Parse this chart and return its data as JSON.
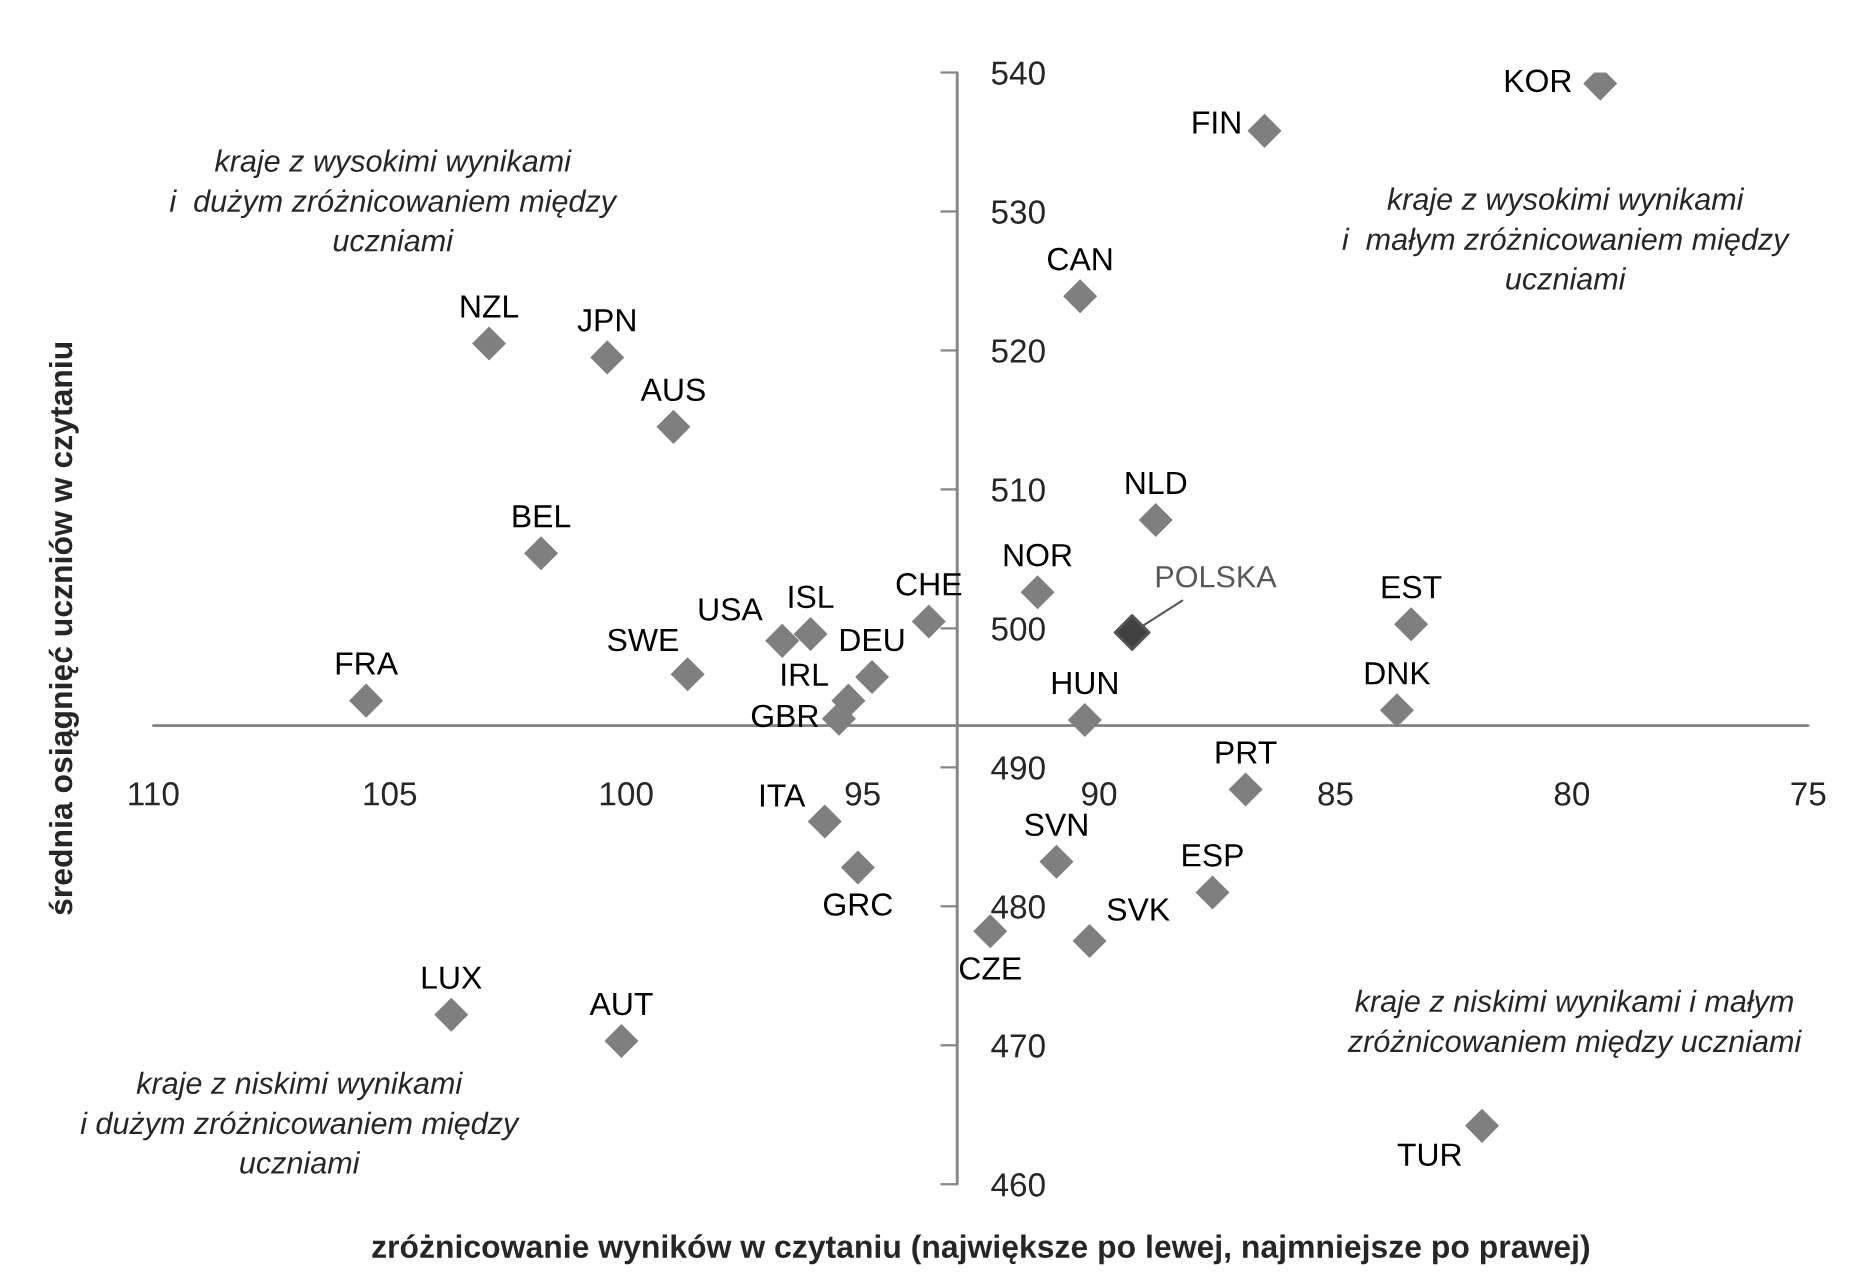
{
  "chart_data": {
    "type": "scatter",
    "xlabel": "zróżnicowanie wyników w czytaniu (największe po lewej, najmniejsze po prawej)",
    "ylabel": "średnia osiągnięć uczniów w czytaniu",
    "xlim": [
      110,
      75
    ],
    "ylim": [
      460,
      540
    ],
    "xticks": [
      110,
      105,
      100,
      95,
      90,
      85,
      80,
      75
    ],
    "yticks": [
      460,
      470,
      480,
      490,
      500,
      510,
      520,
      530,
      540
    ],
    "marker": "diamond",
    "grid": false,
    "legend": false,
    "ref_lines": [
      {
        "axis": "x",
        "value": 93,
        "label": null
      },
      {
        "axis": "y",
        "value": 493,
        "label": null
      }
    ],
    "series": [
      {
        "color": "#7f7f7f",
        "x": [
          79.4,
          86.5,
          90.4,
          88.8,
          91.3,
          83.4,
          83.7,
          90.3,
          86.9,
          90.9,
          87.6,
          90.2,
          92.3,
          95.1,
          93.6,
          102.9,
          100.4,
          99.0,
          101.8,
          105.5,
          98.7,
          96.7,
          96.1,
          94.8,
          95.3,
          95.5,
          95.8,
          103.7,
          100.1,
          81.9
        ],
        "values": [
          539.2,
          535.8,
          523.9,
          507.8,
          502.6,
          500.3,
          494.1,
          493.4,
          488.4,
          483.2,
          481.0,
          477.5,
          478.2,
          482.8,
          500.5,
          520.5,
          519.5,
          514.5,
          505.4,
          494.8,
          496.7,
          499.1,
          499.6,
          496.5,
          494.8,
          493.5,
          486.1,
          472.2,
          470.3,
          464.2
        ]
      },
      {
        "name": "POLSKA",
        "color": "#404040",
        "x": [
          89.3
        ],
        "values": [
          499.7
        ]
      }
    ],
    "annotations": [
      "kraje z wysokimi wynikami\ni  dużym zróżnicowaniem między\nuczniami",
      "kraje z wysokimi wynikami\ni  małym zróżnicowaniem między\nuczniami",
      "kraje z niskimi wynikami\ni dużym zróżnicowaniem między\nuczniami",
      "kraje z niskimi wynikami i małym\nzróżnicowaniem między uczniami",
      {
        "text": "KOR",
        "x": 79.4,
        "y": 539.2
      },
      {
        "text": "FIN",
        "x": 86.5,
        "y": 535.8
      },
      {
        "text": "CAN",
        "x": 90.4,
        "y": 523.9
      },
      {
        "text": "NLD",
        "x": 88.8,
        "y": 507.8
      },
      {
        "text": "NOR",
        "x": 91.3,
        "y": 502.6
      },
      {
        "text": "EST",
        "x": 83.4,
        "y": 500.3
      },
      {
        "text": "DNK",
        "x": 83.7,
        "y": 494.1
      },
      {
        "text": "HUN",
        "x": 90.3,
        "y": 493.4
      },
      {
        "text": "PRT",
        "x": 86.9,
        "y": 488.4
      },
      {
        "text": "SVN",
        "x": 90.9,
        "y": 483.2
      },
      {
        "text": "ESP",
        "x": 87.6,
        "y": 481.0
      },
      {
        "text": "SVK",
        "x": 90.2,
        "y": 477.5
      },
      {
        "text": "CZE",
        "x": 92.3,
        "y": 478.2
      },
      {
        "text": "GRC",
        "x": 95.1,
        "y": 482.8
      },
      {
        "text": "CHE",
        "x": 93.6,
        "y": 500.5
      },
      {
        "text": "NZL",
        "x": 102.9,
        "y": 520.5
      },
      {
        "text": "JPN",
        "x": 100.4,
        "y": 519.5
      },
      {
        "text": "AUS",
        "x": 99.0,
        "y": 514.5
      },
      {
        "text": "BEL",
        "x": 101.8,
        "y": 505.4
      },
      {
        "text": "FRA",
        "x": 105.5,
        "y": 494.8
      },
      {
        "text": "SWE",
        "x": 98.7,
        "y": 496.7
      },
      {
        "text": "USA",
        "x": 96.7,
        "y": 499.1
      },
      {
        "text": "ISL",
        "x": 96.1,
        "y": 499.6
      },
      {
        "text": "DEU",
        "x": 94.8,
        "y": 496.5
      },
      {
        "text": "IRL",
        "x": 95.3,
        "y": 494.8
      },
      {
        "text": "GBR",
        "x": 95.5,
        "y": 493.5
      },
      {
        "text": "ITA",
        "x": 95.8,
        "y": 486.1
      },
      {
        "text": "LUX",
        "x": 103.7,
        "y": 472.2
      },
      {
        "text": "AUT",
        "x": 100.1,
        "y": 470.3
      },
      {
        "text": "TUR",
        "x": 81.9,
        "y": 464.2
      }
    ]
  }
}
